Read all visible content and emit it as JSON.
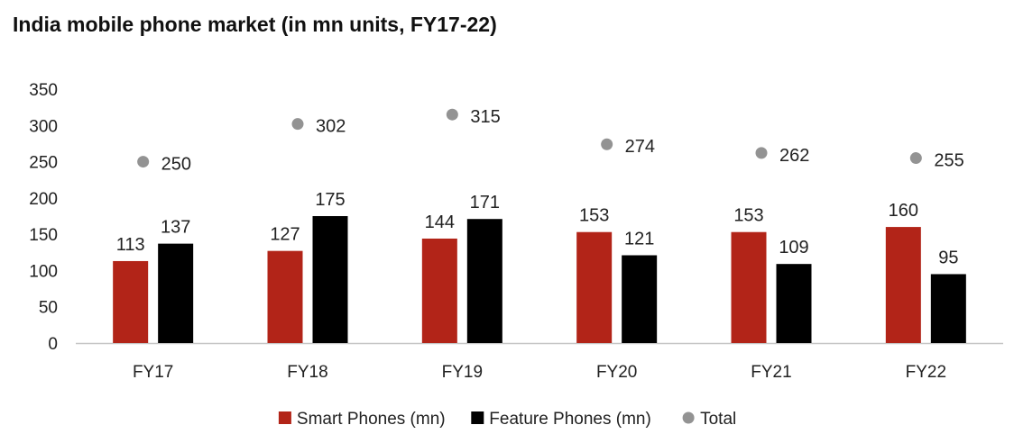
{
  "title": "India mobile phone market (in mn units, FY17-22)",
  "chart_data": {
    "type": "bar",
    "title": "India mobile phone market (in mn units, FY17-22)",
    "categories": [
      "FY17",
      "FY18",
      "FY19",
      "FY20",
      "FY21",
      "FY22"
    ],
    "series": [
      {
        "name": "Smart Phones (mn)",
        "kind": "bar",
        "color": "#b22418",
        "values": [
          113,
          127,
          144,
          153,
          153,
          160
        ]
      },
      {
        "name": "Feature Phones (mn)",
        "kind": "bar",
        "color": "#000000",
        "values": [
          137,
          175,
          171,
          121,
          109,
          95
        ]
      },
      {
        "name": "Total",
        "kind": "scatter",
        "color": "#939393",
        "values": [
          250,
          302,
          315,
          274,
          262,
          255
        ]
      }
    ],
    "ylim": [
      0,
      350
    ],
    "yticks": [
      0,
      50,
      100,
      150,
      200,
      250,
      300,
      350
    ],
    "grid": false,
    "legend": "bottom",
    "data_labels": true
  }
}
